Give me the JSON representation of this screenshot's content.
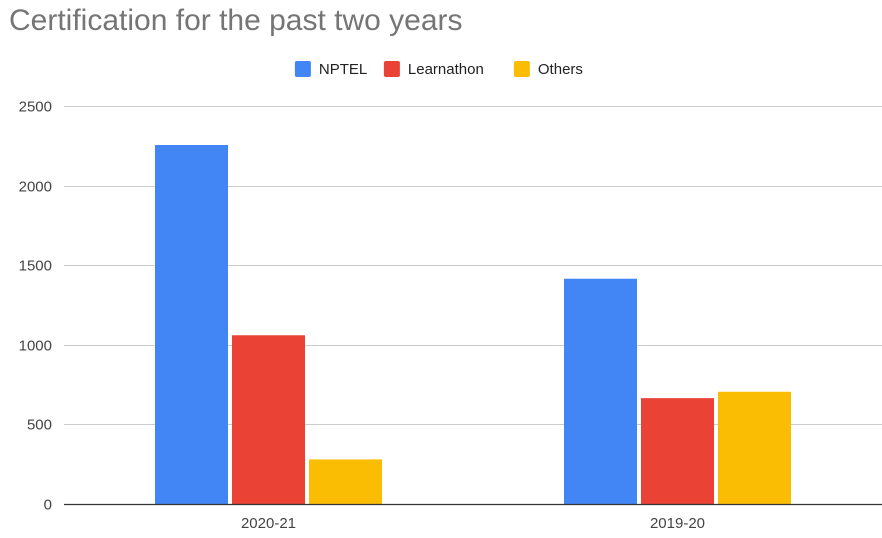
{
  "chart_data": {
    "type": "bar",
    "title": "Certification for the past two years",
    "categories": [
      "2020-21",
      "2019-20"
    ],
    "series": [
      {
        "name": "NPTEL",
        "color": "#4285f4",
        "values": [
          2255,
          1415
        ]
      },
      {
        "name": "Learnathon",
        "color": "#ea4335",
        "values": [
          1060,
          665
        ]
      },
      {
        "name": "Others",
        "color": "#fbbc04",
        "values": [
          280,
          705
        ]
      }
    ],
    "xlabel": "",
    "ylabel": "",
    "ylim": [
      0,
      2500
    ],
    "yticks": [
      0,
      500,
      1000,
      1500,
      2000,
      2500
    ],
    "grid": true,
    "legend_position": "top-center",
    "colors": {
      "title": "#757575",
      "axis_text": "#444444",
      "gridline": "#cccccc",
      "baseline": "#333333"
    }
  }
}
